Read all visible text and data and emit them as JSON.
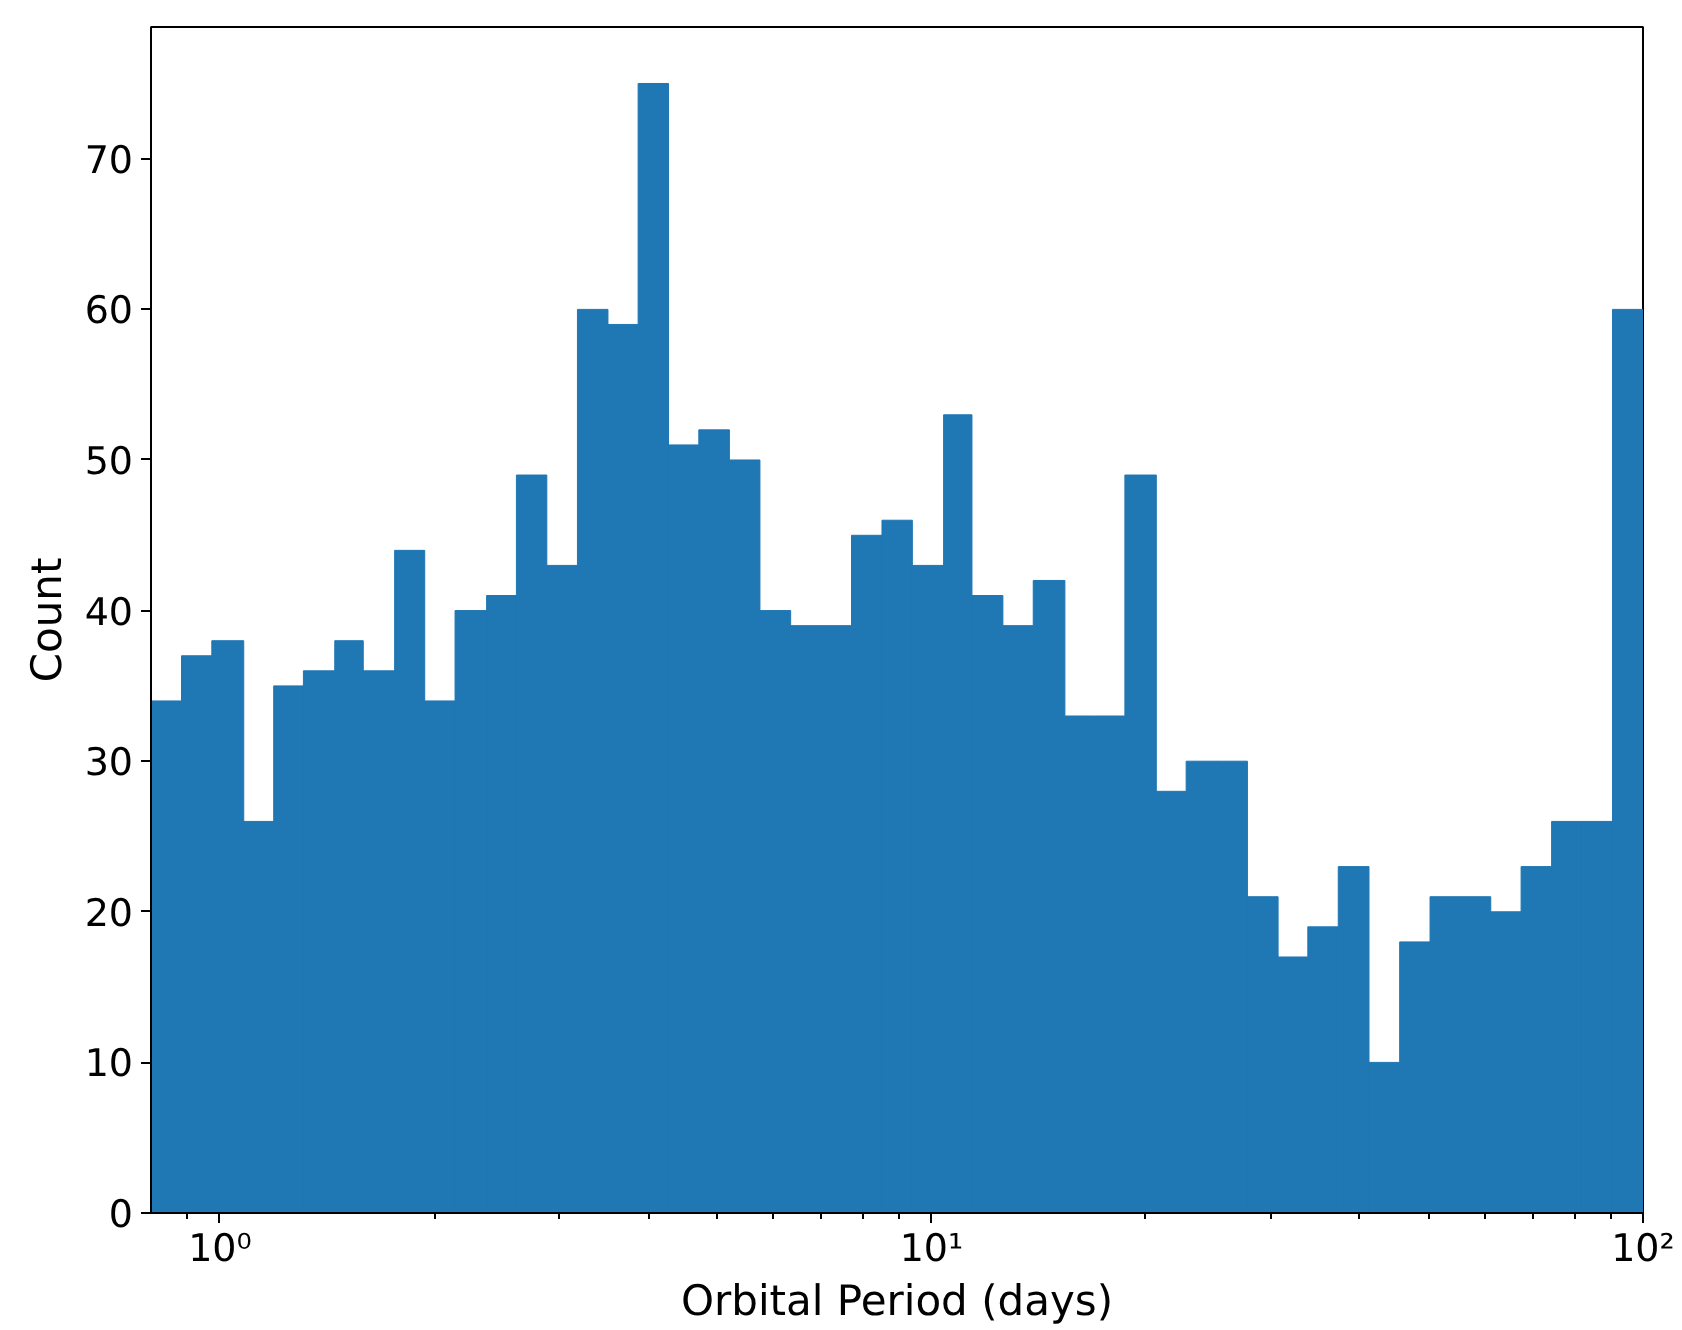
{
  "chart_data": {
    "type": "histogram",
    "xlabel": "Orbital Period (days)",
    "ylabel": "Count",
    "bins": [
      0.8,
      0.883,
      0.974,
      1.08,
      1.19,
      1.31,
      1.45,
      1.59,
      1.76,
      1.94,
      2.14,
      2.37,
      2.61,
      2.88,
      3.18,
      3.51,
      3.87,
      4.27,
      4.71,
      5.2,
      5.74,
      6.34,
      6.99,
      7.72,
      8.52,
      9.4,
      10.4,
      11.4,
      12.6,
      13.9,
      15.4,
      17,
      18.7,
      20.7,
      22.8,
      25.2,
      27.8,
      30.7,
      33.8,
      37.3,
      41.2,
      45.5,
      50.2,
      55.4,
      61.1,
      67.4,
      74.4,
      82.1,
      90.6,
      100
    ],
    "values": [
      34,
      37,
      38,
      26,
      35,
      36,
      38,
      36,
      44,
      34,
      40,
      41,
      49,
      43,
      60,
      59,
      75,
      51,
      52,
      50,
      40,
      39,
      39,
      45,
      46,
      43,
      53,
      41,
      39,
      42,
      33,
      33,
      49,
      28,
      30,
      30,
      21,
      17,
      19,
      23,
      10,
      18,
      21,
      21,
      20,
      23,
      26,
      26,
      60
    ],
    "color": "#1f77b4",
    "log": "x",
    "xlim": [
      0.8,
      100
    ],
    "ylim": [
      0,
      78.75
    ],
    "xticks": [
      {
        "value": 0.9,
        "label": null
      },
      {
        "value": 1,
        "label": "10⁰"
      },
      {
        "value": 2,
        "label": null
      },
      {
        "value": 3,
        "label": null
      },
      {
        "value": 4,
        "label": null
      },
      {
        "value": 5,
        "label": null
      },
      {
        "value": 6,
        "label": null
      },
      {
        "value": 7,
        "label": null
      },
      {
        "value": 8,
        "label": null
      },
      {
        "value": 9,
        "label": null
      },
      {
        "value": 10,
        "label": "10¹"
      },
      {
        "value": 20,
        "label": null
      },
      {
        "value": 30,
        "label": null
      },
      {
        "value": 40,
        "label": null
      },
      {
        "value": 50,
        "label": null
      },
      {
        "value": 60,
        "label": null
      },
      {
        "value": 70,
        "label": null
      },
      {
        "value": 80,
        "label": null
      },
      {
        "value": 90,
        "label": null
      },
      {
        "value": 100,
        "label": "10²"
      }
    ],
    "yticks": [
      0,
      10,
      20,
      30,
      40,
      50,
      60,
      70
    ],
    "grid": false
  }
}
